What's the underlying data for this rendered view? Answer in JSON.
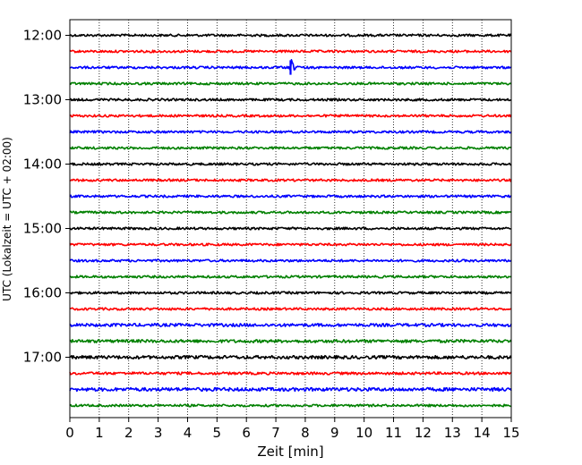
{
  "chart_data": {
    "type": "line",
    "xlabel": "Zeit  [min]",
    "ylabel": "UTC (Lokalzeit = UTC + 02:00)",
    "xlim": [
      0,
      15
    ],
    "x_ticks": [
      "0",
      "1",
      "2",
      "3",
      "4",
      "5",
      "6",
      "7",
      "8",
      "9",
      "10",
      "11",
      "12",
      "13",
      "14",
      "15"
    ],
    "y_tick_labels": [
      "12:00",
      "13:00",
      "14:00",
      "15:00",
      "16:00",
      "17:00"
    ],
    "grid": "vertical",
    "trace_colors": [
      "#000000",
      "#ff0000",
      "#0000ff",
      "#008000"
    ],
    "traces": [
      {
        "start": "12:00",
        "color": "#000000",
        "noise": 1.0
      },
      {
        "start": "12:15",
        "color": "#ff0000",
        "noise": 1.0
      },
      {
        "start": "12:30",
        "color": "#0000ff",
        "noise": 1.0,
        "event_min": 7.5,
        "event_amp": 12
      },
      {
        "start": "12:45",
        "color": "#008000",
        "noise": 1.0
      },
      {
        "start": "13:00",
        "color": "#000000",
        "noise": 1.0
      },
      {
        "start": "13:15",
        "color": "#ff0000",
        "noise": 1.0
      },
      {
        "start": "13:30",
        "color": "#0000ff",
        "noise": 1.0
      },
      {
        "start": "13:45",
        "color": "#008000",
        "noise": 1.0
      },
      {
        "start": "14:00",
        "color": "#000000",
        "noise": 1.0
      },
      {
        "start": "14:15",
        "color": "#ff0000",
        "noise": 1.0
      },
      {
        "start": "14:30",
        "color": "#0000ff",
        "noise": 1.0
      },
      {
        "start": "14:45",
        "color": "#008000",
        "noise": 1.0
      },
      {
        "start": "15:00",
        "color": "#000000",
        "noise": 1.0
      },
      {
        "start": "15:15",
        "color": "#ff0000",
        "noise": 1.0
      },
      {
        "start": "15:30",
        "color": "#0000ff",
        "noise": 1.0
      },
      {
        "start": "15:45",
        "color": "#008000",
        "noise": 1.0
      },
      {
        "start": "16:00",
        "color": "#000000",
        "noise": 1.0
      },
      {
        "start": "16:15",
        "color": "#ff0000",
        "noise": 1.0
      },
      {
        "start": "16:30",
        "color": "#0000ff",
        "noise": 1.3
      },
      {
        "start": "16:45",
        "color": "#008000",
        "noise": 1.3
      },
      {
        "start": "17:00",
        "color": "#000000",
        "noise": 1.4
      },
      {
        "start": "17:15",
        "color": "#ff0000",
        "noise": 1.1
      },
      {
        "start": "17:30",
        "color": "#0000ff",
        "noise": 1.5
      },
      {
        "start": "17:45",
        "color": "#008000",
        "noise": 1.0
      }
    ]
  }
}
